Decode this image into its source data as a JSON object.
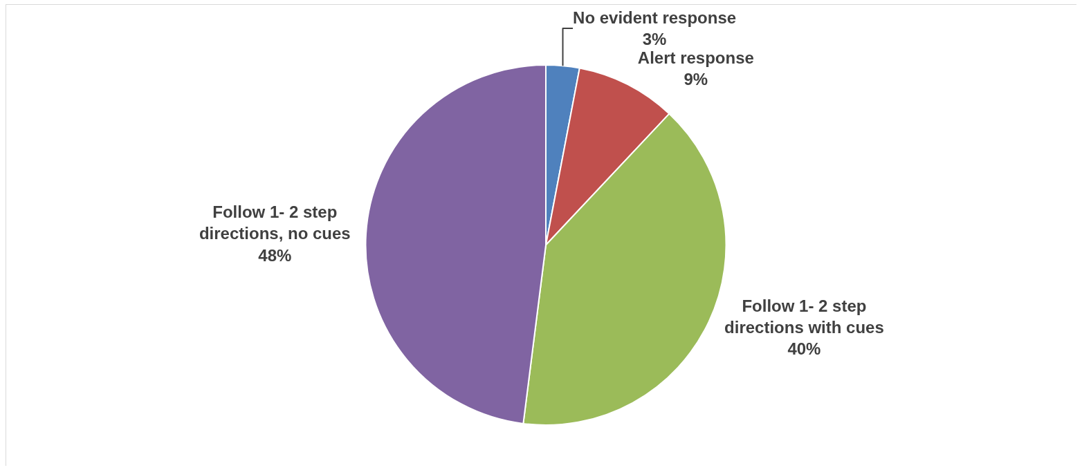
{
  "chart_data": {
    "type": "pie",
    "categories": [
      "No evident response",
      "Alert response",
      "Follow 1- 2 step directions with cues",
      "Follow 1- 2 step directions, no cues"
    ],
    "values": [
      3,
      9,
      40,
      48
    ],
    "value_labels": [
      "3%",
      "9%",
      "40%",
      "48%"
    ],
    "colors": [
      "#4f81bd",
      "#c0504d",
      "#9bbb59",
      "#8064a2"
    ],
    "legend": false
  }
}
